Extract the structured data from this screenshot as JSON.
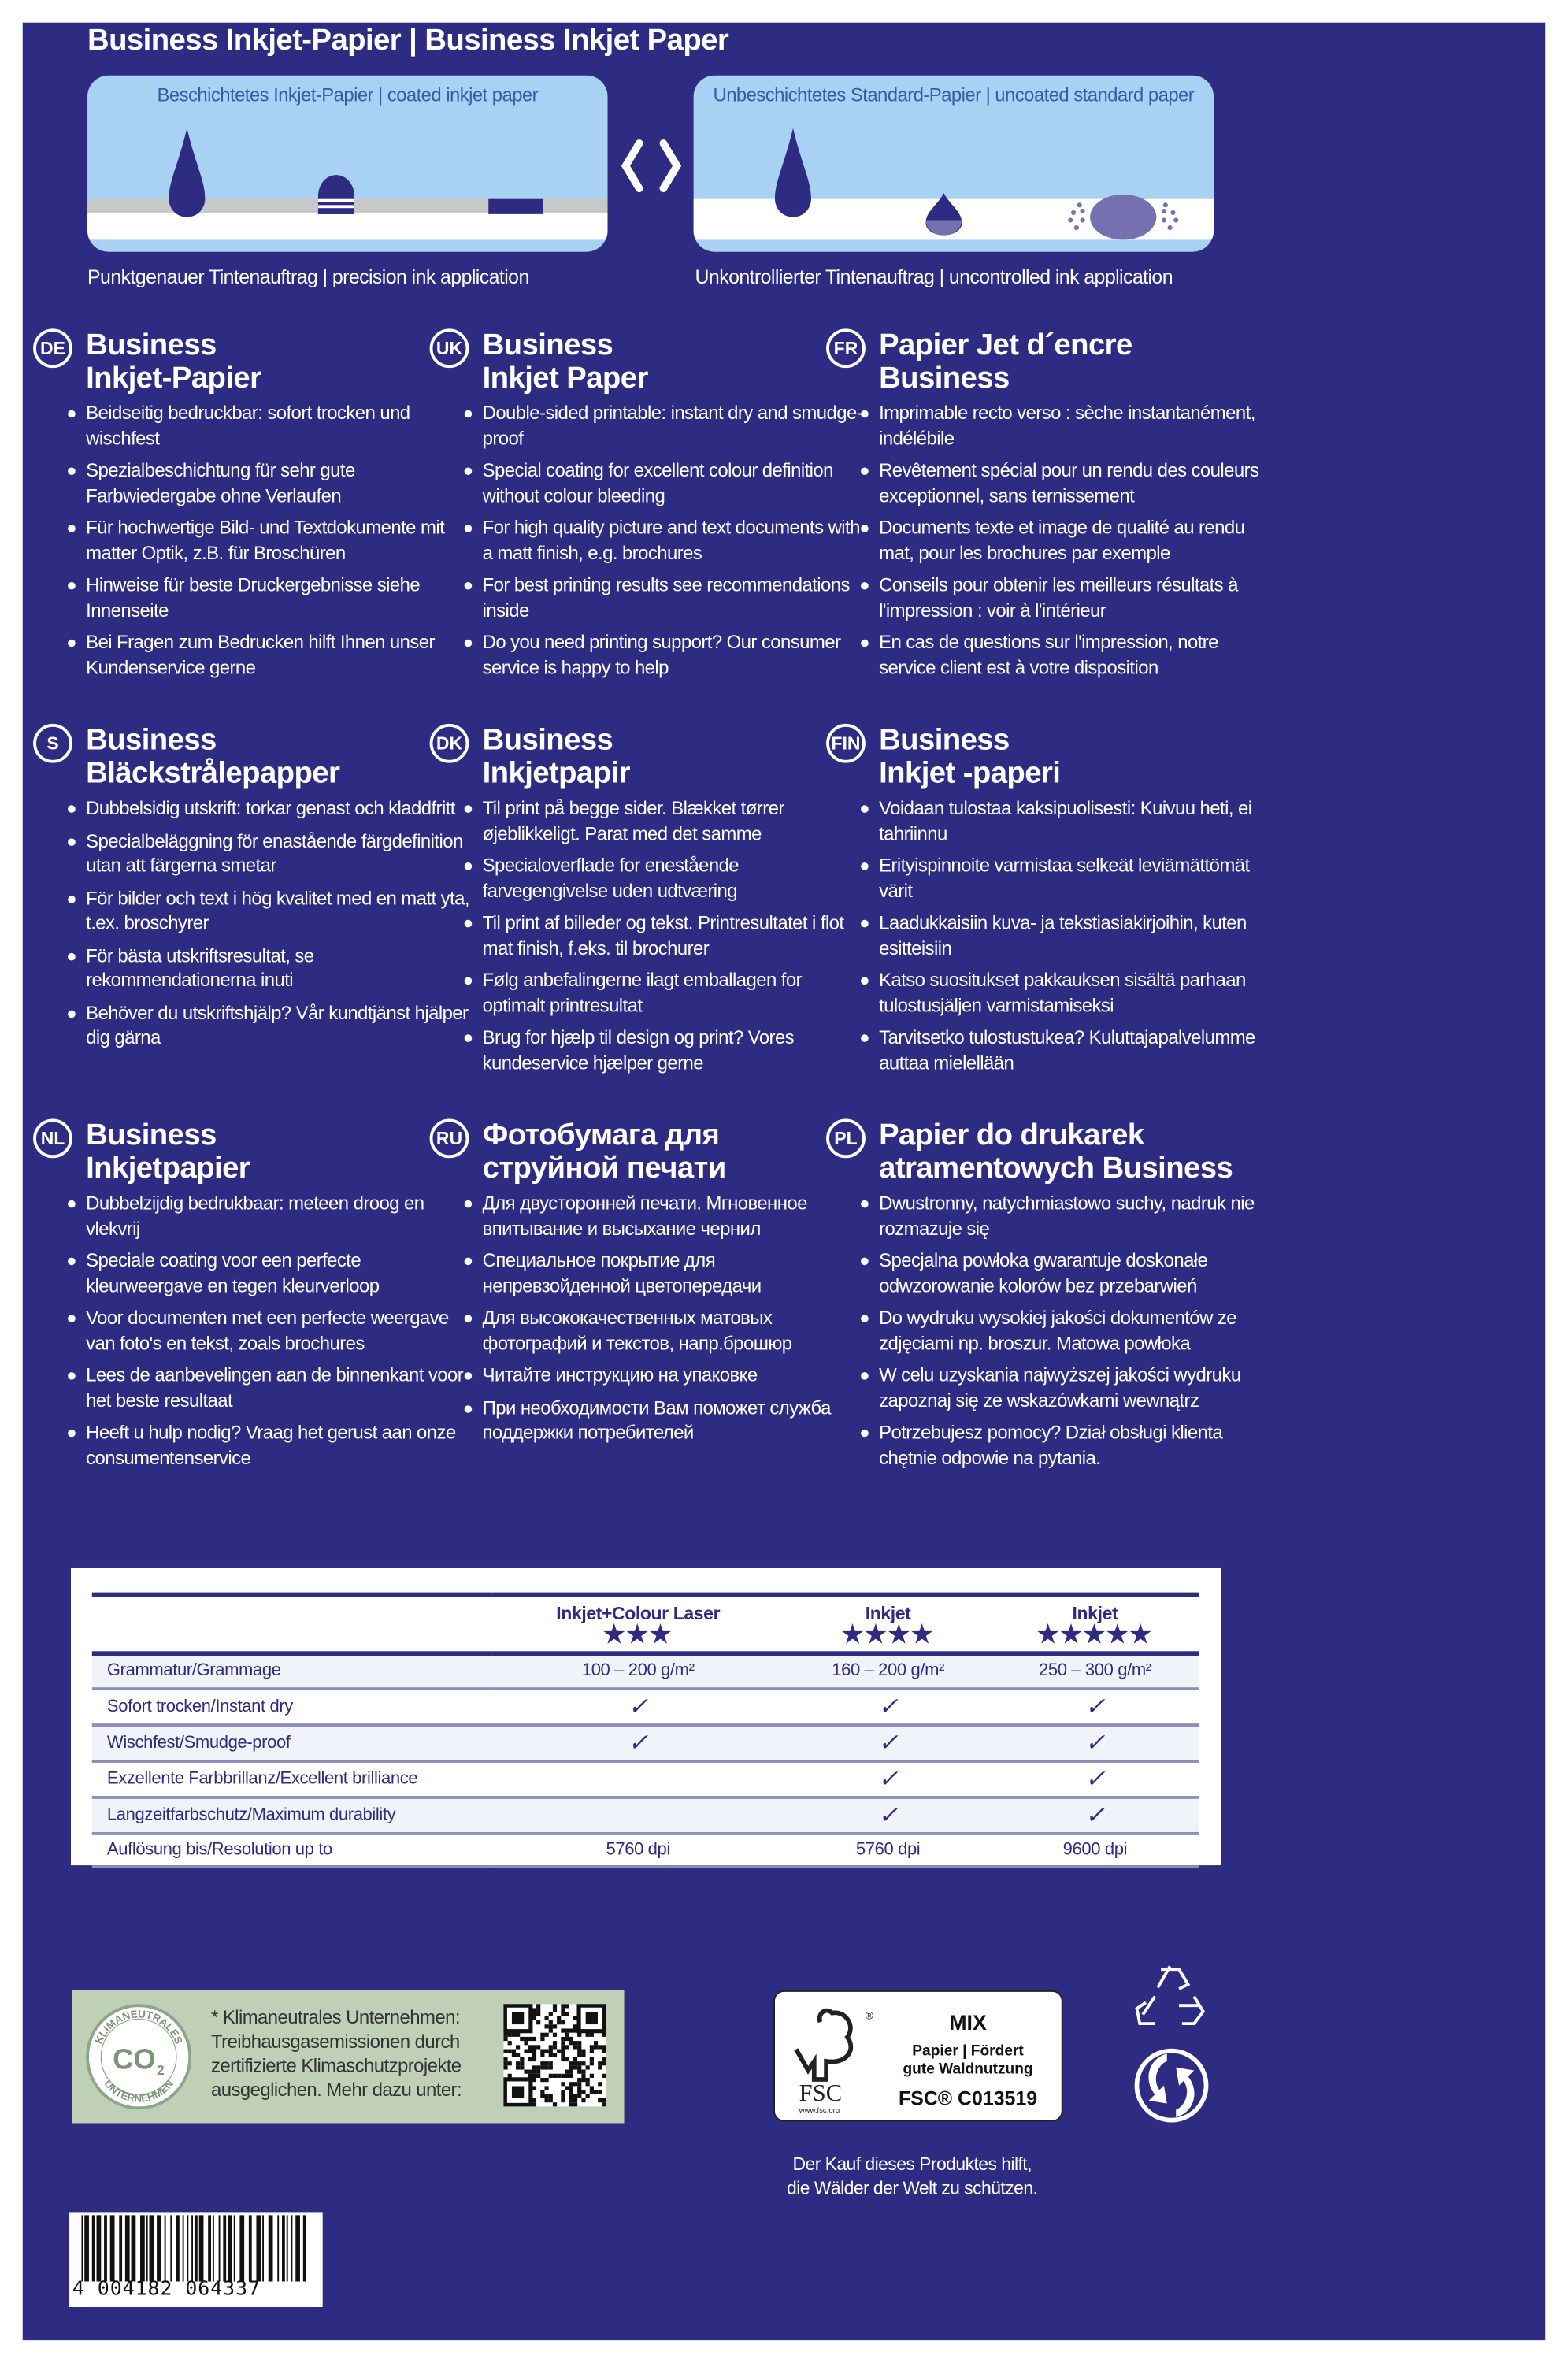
{
  "title": "Business Inkjet-Papier | Business Inkjet Paper",
  "diagram": {
    "left_label": "Beschichtetes Inkjet-Papier | coated inkjet paper",
    "right_label": "Unbeschichtetes Standard-Papier | uncoated standard paper",
    "left_caption": "Punktgenauer Tintenauftrag | precision ink application",
    "right_caption": "Unkontrollierter Tintenauftrag | uncontrolled ink application",
    "colors": {
      "ink": "#2e2c82",
      "paper_bg": "#a9d1f3",
      "coating": "#c8c8c8",
      "spread": "#7670b0"
    }
  },
  "sections": [
    {
      "code": "DE",
      "title1": "Business",
      "title2": "Inkjet-Papier",
      "bullets": [
        "Beidseitig bedruckbar: sofort trocken und wischfest",
        "Spezialbeschichtung für sehr gute Farbwiedergabe ohne Verlaufen",
        "Für hochwertige Bild- und Textdokumente mit matter Optik, z.B. für Broschüren",
        "Hinweise für beste Druckergebnisse siehe Innenseite",
        "Bei Fragen zum Bedrucken hilft Ihnen unser Kundenservice gerne"
      ]
    },
    {
      "code": "UK",
      "title1": "Business",
      "title2": "Inkjet Paper",
      "bullets": [
        "Double-sided printable: instant dry and smudge-proof",
        "Special coating for excellent colour definition without colour bleeding",
        "For high quality picture and text documents with a matt finish, e.g. brochures",
        "For best printing results see recommendations inside",
        "Do you need printing support? Our consumer service is happy to help"
      ]
    },
    {
      "code": "FR",
      "title1": "Papier Jet d´encre",
      "title2": "Business",
      "bullets": [
        "Imprimable recto verso : sèche instantanément, indélébile",
        "Revêtement spécial pour un rendu des couleurs exceptionnel, sans ternissement",
        "Documents texte et image de qualité au rendu mat, pour les brochures par exemple",
        "Conseils pour obtenir les meilleurs résultats à l'impression : voir à l'intérieur",
        "En cas de questions sur l'impression, notre service client est à votre disposition"
      ]
    },
    {
      "code": "S",
      "title1": "Business",
      "title2": "Bläckstrålepapper",
      "bullets": [
        "Dubbelsidig utskrift: torkar genast och kladdfritt",
        "Specialbeläggning för enastående färgdefinition utan att färgerna smetar",
        "För bilder och text i hög kvalitet med en matt yta, t.ex. broschyrer",
        "För bästa utskriftsresultat, se rekommendationerna inuti",
        "Behöver du utskriftshjälp? Vår kundtjänst hjälper dig gärna"
      ]
    },
    {
      "code": "DK",
      "title1": "Business",
      "title2": "Inkjetpapir",
      "bullets": [
        "Til print på begge sider. Blækket tørrer øjeblikkeligt. Parat med det samme",
        "Specialoverflade for enestående farvegengivelse uden udtværing",
        "Til print af billeder og tekst. Printresultatet i flot mat finish, f.eks. til brochurer",
        "Følg anbefalingerne ilagt emballagen for optimalt printresultat",
        "Brug for hjælp til design og print? Vores kundeservice hjælper gerne"
      ]
    },
    {
      "code": "FIN",
      "title1": "Business",
      "title2": "Inkjet -paperi",
      "bullets": [
        "Voidaan tulostaa kaksipuolisesti: Kuivuu heti, ei tahriinnu",
        "Erityispinnoite varmistaa selkeät leviämättömät värit",
        "Laadukkaisiin kuva- ja tekstiasiakirjoihin, kuten esitteisiin",
        "Katso suositukset pakkauksen sisältä parhaan tulostusjäljen varmistamiseksi",
        "Tarvitsetko tulostustukea? Kuluttajapalvelumme auttaa mielellään"
      ]
    },
    {
      "code": "NL",
      "title1": "Business",
      "title2": "Inkjetpapier",
      "bullets": [
        "Dubbelzijdig bedrukbaar: meteen droog en vlekvrij",
        "Speciale coating voor een perfecte kleurweergave en tegen kleurverloop",
        "Voor documenten met een perfecte weergave van foto's en tekst, zoals brochures",
        "Lees de aanbevelingen aan de binnenkant voor het beste resultaat",
        "Heeft u hulp nodig? Vraag het gerust aan onze consumentenservice"
      ]
    },
    {
      "code": "RU",
      "title1": "Фотобумага для",
      "title2": "струйной печати",
      "bullets": [
        "Для двусторонней печати. Мгновенное впитывание и высыхание чернил",
        "Специальное покрытие для непревзойденной цветопередачи",
        "Для высококачественных матовых фотографий и текстов, напр.брошюр",
        "Читайте инструкцию на упаковке",
        "При необходимости Вам поможет служба поддержки потребителей"
      ]
    },
    {
      "code": "PL",
      "title1": "Papier do drukarek",
      "title2": "atramentowych Business",
      "bullets": [
        "Dwustronny, natychmiastowo suchy, nadruk nie rozmazuje się",
        "Specjalna powłoka gwarantuje doskonałe odwzorowanie kolorów bez przebarwień",
        "Do wydruku wysokiej jakości dokumentów ze zdjęciami np. broszur. Matowa powłoka",
        "W celu uzyskania najwyższej jakości wydruku zapoznaj się ze wskazówkami wewnątrz",
        "Potrzebujesz pomocy? Dział obsługi klienta chętnie odpowie na pytania."
      ]
    }
  ],
  "table": {
    "columns": [
      {
        "name": "Inkjet+Colour Laser",
        "stars": "★★★",
        "rating": 3
      },
      {
        "name": "Inkjet",
        "stars": "★★★★",
        "rating": 4
      },
      {
        "name": "Inkjet",
        "stars": "★★★★★",
        "rating": 5
      }
    ],
    "rows": [
      {
        "label": "Grammatur/Grammage",
        "values": [
          "100 – 200 g/m²",
          "160 – 200 g/m²",
          "250 – 300 g/m²"
        ]
      },
      {
        "label": "Sofort trocken/Instant dry",
        "values": [
          "✓",
          "✓",
          "✓"
        ]
      },
      {
        "label": "Wischfest/Smudge-proof",
        "values": [
          "✓",
          "✓",
          "✓"
        ]
      },
      {
        "label": "Exzellente Farbbrillanz/Excellent brilliance",
        "values": [
          "",
          "✓",
          "✓"
        ]
      },
      {
        "label": "Langzeitfarbschutz/Maximum durability",
        "values": [
          "",
          "✓",
          "✓"
        ]
      },
      {
        "label": "Auflösung bis/Resolution up to",
        "values": [
          "5760 dpi",
          "5760 dpi",
          "9600 dpi"
        ]
      }
    ]
  },
  "climate": {
    "seal_top": "KLIMANEUTRALES",
    "seal_center": "CO2",
    "seal_bottom": "UNTERNEHMEN",
    "text": [
      "* Klimaneutrales Unternehmen:",
      "Treibhausgasemissionen durch",
      "zertifizierte Klimaschutzprojekte",
      "ausgeglichen. Mehr dazu unter:"
    ]
  },
  "fsc": {
    "logo": "FSC",
    "url": "www.fsc.org",
    "mix": "MIX",
    "line1": "Papier | Fördert",
    "line2": "gute Waldnutzung",
    "code": "FSC® C013519"
  },
  "forest_note": [
    "Der Kauf dieses Produktes hilft,",
    "die Wälder der Welt zu schützen."
  ],
  "barcode": {
    "number": "4 004182 064337"
  },
  "colors": {
    "background": "#2e2c82",
    "table_bg": "#ffffff",
    "climate_bg": "#bfd0b6"
  }
}
